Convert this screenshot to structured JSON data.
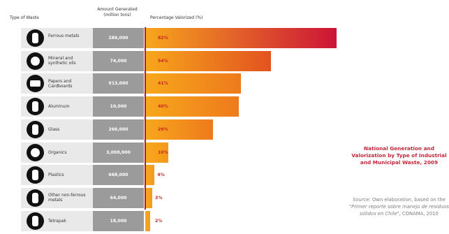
{
  "header": {
    "type_label": "Type of Waste",
    "amount_label": "Amount Generated (million tons)",
    "percent_label": "Percentage Valorized (%)"
  },
  "side": {
    "title": "National Generation and Valorization by Type of Industrial and Municipal Waste, 2009",
    "source_prefix": "Source:",
    "source_text": "Own elaboration, based on the",
    "source_italic": "\"Primer reporte sobre manejo de residuos sólidos en Chile\"",
    "source_end": ", CONAMA, 2010"
  },
  "chart_data": {
    "type": "bar",
    "title": "National Generation and Valorization by Type of Industrial and Municipal Waste, 2009",
    "xlabel": "Percentage Valorized (%)",
    "ylabel": "Type of Waste",
    "xlim": [
      0,
      82
    ],
    "grid": false,
    "categories": [
      "Ferrous metals",
      "Mineral and synthetic oils",
      "Papers and Cardboards",
      "Aluminum",
      "Glass",
      "Organics",
      "Plastics",
      "Other non-ferrous metals",
      "Tetrapak"
    ],
    "amounts": [
      "286,000",
      "74,000",
      "913,000",
      "10,000",
      "266,000",
      "3,008,000",
      "668,000",
      "64,000",
      "18,000"
    ],
    "values": [
      82,
      54,
      41,
      40,
      29,
      10,
      4,
      3,
      2
    ],
    "value_labels": [
      "82%",
      "54%",
      "41%",
      "40%",
      "29%",
      "10%",
      "4%",
      "3%",
      "2%"
    ],
    "icons": [
      "ingot-icon",
      "oil-drop-icon",
      "paper-box-icon",
      "can-icon",
      "bottle-icon",
      "apple-icon",
      "plastic-bottle-icon",
      "ingot-icon",
      "carton-icon"
    ],
    "colors": {
      "bar_start": "#f7a71c",
      "bar_end": "#cc1437",
      "amount_bg": "#9b9b9b",
      "row_bg": "#e9e9e9",
      "label": "#c9281f"
    }
  }
}
